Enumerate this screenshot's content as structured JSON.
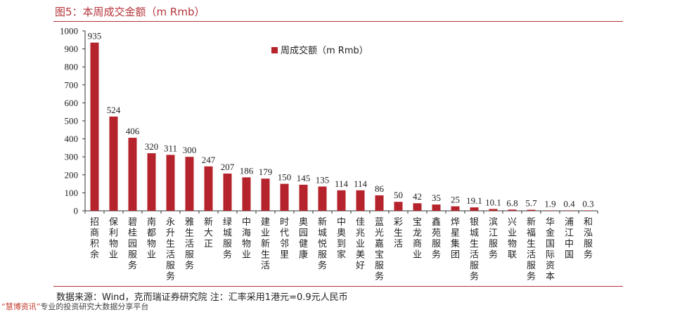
{
  "header": {
    "title": "图5：本周成交金额（m Rmb）"
  },
  "footer": {
    "source": "数据来源：Wind，克而瑞证券研究院    注：汇率采用1港元=0.9元人民币",
    "watermark_brand": "“慧博资讯”",
    "watermark_text": "专业的投资研究大数据分享平台"
  },
  "colors": {
    "bar": "#b5232c",
    "title": "#b5343a"
  },
  "chart_data": {
    "type": "bar",
    "title": "",
    "xlabel": "",
    "ylabel": "",
    "ylim": [
      0,
      1000
    ],
    "yticks": [
      0,
      100,
      200,
      300,
      400,
      500,
      600,
      700,
      800,
      900,
      1000
    ],
    "grid": false,
    "legend_position": "top-right",
    "categories": [
      "招商积余",
      "保利物业",
      "碧桂园服务",
      "南都物业",
      "永升生活服务",
      "雅生活服务",
      "新大正",
      "绿城服务",
      "中海物业",
      "建业新生活",
      "时代邻里",
      "奥园健康",
      "新城悦服务",
      "中奥到家",
      "佳兆业美好",
      "蓝光嘉宝服务",
      "彩生活",
      "宝龙商业",
      "鑫苑服务",
      "烨星集团",
      "银城生活服务",
      "滨江服务",
      "兴业物联",
      "新福生活服务",
      "华金国际资本",
      "浦江中国",
      "和泓服务"
    ],
    "series": [
      {
        "name": "周成交额（m Rmb）",
        "values": [
          935,
          524,
          406,
          320,
          311,
          300,
          247,
          207,
          186,
          179,
          150,
          145,
          135,
          114,
          114,
          86,
          50,
          42,
          35,
          25,
          19.1,
          10.1,
          6.8,
          5.7,
          1.9,
          0.4,
          0.3
        ]
      }
    ]
  }
}
